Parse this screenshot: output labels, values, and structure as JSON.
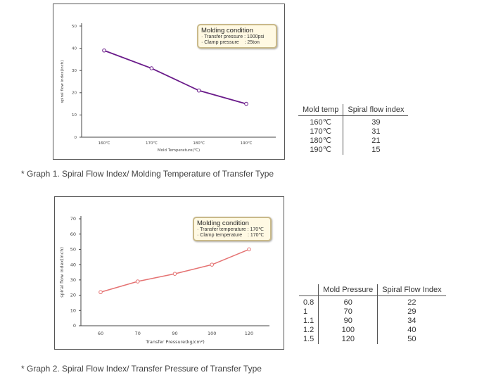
{
  "chart_data": [
    {
      "type": "line",
      "title": "",
      "xlabel": "Mold Temperature(℃)",
      "ylabel": "spiral flow index(inch)",
      "categories": [
        "160℃",
        "170℃",
        "180℃",
        "190℃"
      ],
      "yticks": [
        "0",
        "10",
        "20",
        "30",
        "40",
        "50"
      ],
      "ylim": [
        0,
        50
      ],
      "series": [
        {
          "values": [
            39,
            31,
            21,
            15
          ],
          "color": "#6a1b8a"
        }
      ],
      "legend": {
        "title": "Molding condition",
        "lines": [
          "· Transfer pressure : 1000psi",
          "· Clamp pressure    : 25ton"
        ],
        "placement": "top-right"
      },
      "grid": false
    },
    {
      "type": "line",
      "title": "",
      "xlabel": "Transfer Pressure(kg/cm²)",
      "ylabel": "spiral flow index(inch)",
      "categories": [
        "60",
        "70",
        "90",
        "100",
        "120"
      ],
      "yticks": [
        "0",
        "10",
        "20",
        "30",
        "40",
        "50",
        "60",
        "70"
      ],
      "ylim": [
        0,
        70
      ],
      "series": [
        {
          "values": [
            22,
            29,
            34,
            40,
            50
          ],
          "color": "#e57373"
        }
      ],
      "legend": {
        "title": "Molding condition",
        "lines": [
          "· Transfer temperature : 170℃",
          "· Clamp temperature    : 170℃"
        ],
        "placement": "top-right"
      },
      "grid": false
    }
  ],
  "captions": {
    "graph1": "* Graph 1. Spiral Flow Index/ Molding Temperature of Transfer Type",
    "graph2": "* Graph 2. Spiral Flow Index/ Transfer Pressure of Transfer Type"
  },
  "table1": {
    "headers": [
      "Mold temp",
      "Spiral flow index"
    ],
    "rows": [
      [
        "160℃",
        "39"
      ],
      [
        "170℃",
        "31"
      ],
      [
        "180℃",
        "21"
      ],
      [
        "190℃",
        "15"
      ]
    ]
  },
  "table2": {
    "headers": [
      "",
      "Mold Pressure",
      "Spiral Flow Index"
    ],
    "rows": [
      [
        "0.8",
        "60",
        "22"
      ],
      [
        "1",
        "70",
        "29"
      ],
      [
        "1.1",
        "90",
        "34"
      ],
      [
        "1.2",
        "100",
        "40"
      ],
      [
        "1.5",
        "120",
        "50"
      ]
    ]
  }
}
